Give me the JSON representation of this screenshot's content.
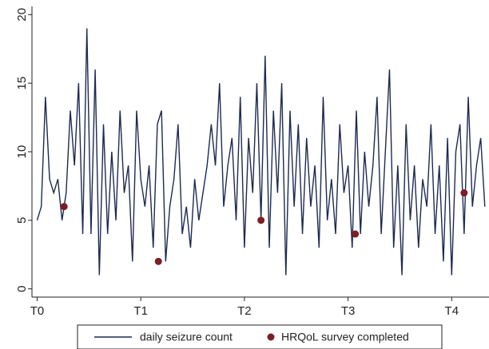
{
  "chart_data": {
    "type": "line",
    "xlim": [
      -0.05,
      4.36
    ],
    "ylim": [
      -0.6,
      20.6
    ],
    "xticks": [
      {
        "value": 0,
        "label": "T0"
      },
      {
        "value": 1,
        "label": "T1"
      },
      {
        "value": 2,
        "label": "T2"
      },
      {
        "value": 3,
        "label": "T3"
      },
      {
        "value": 4,
        "label": "T4"
      }
    ],
    "yticks": [
      0,
      5,
      10,
      15,
      20
    ],
    "series": [
      {
        "name": "daily seizure count",
        "color": "#1c2a52",
        "x": [
          0,
          0.04,
          0.08,
          0.12,
          0.16,
          0.2,
          0.24,
          0.28,
          0.32,
          0.36,
          0.4,
          0.44,
          0.48,
          0.52,
          0.56,
          0.6,
          0.64,
          0.68,
          0.72,
          0.76,
          0.8,
          0.84,
          0.88,
          0.92,
          0.96,
          1,
          1.04,
          1.08,
          1.12,
          1.16,
          1.2,
          1.24,
          1.28,
          1.32,
          1.36,
          1.4,
          1.44,
          1.48,
          1.52,
          1.56,
          1.6,
          1.64,
          1.68,
          1.72,
          1.76,
          1.8,
          1.84,
          1.88,
          1.92,
          1.96,
          2,
          2.04,
          2.08,
          2.12,
          2.16,
          2.2,
          2.24,
          2.28,
          2.32,
          2.36,
          2.4,
          2.44,
          2.48,
          2.52,
          2.56,
          2.6,
          2.64,
          2.68,
          2.72,
          2.76,
          2.8,
          2.84,
          2.88,
          2.92,
          2.96,
          3,
          3.04,
          3.08,
          3.12,
          3.16,
          3.2,
          3.24,
          3.28,
          3.32,
          3.36,
          3.4,
          3.44,
          3.48,
          3.52,
          3.56,
          3.6,
          3.64,
          3.68,
          3.72,
          3.76,
          3.8,
          3.84,
          3.88,
          3.92,
          3.96,
          4,
          4.04,
          4.08,
          4.12,
          4.16,
          4.2,
          4.24,
          4.28,
          4.32
        ],
        "values": [
          5,
          6,
          14,
          8,
          7,
          8,
          5,
          7,
          13,
          9,
          15,
          4,
          19,
          4,
          16,
          1,
          12,
          4,
          10,
          5,
          13,
          7,
          9,
          2,
          13,
          8,
          6,
          9,
          3,
          12,
          13,
          2,
          6,
          8,
          12,
          4,
          6,
          3,
          8,
          5,
          7,
          9,
          12,
          9,
          15,
          6,
          9,
          11,
          5,
          14,
          3,
          11,
          7,
          15,
          5,
          17,
          3,
          13,
          7,
          15,
          1,
          13,
          6,
          12,
          4,
          11,
          6,
          9,
          3,
          14,
          5,
          8,
          4,
          12,
          7,
          9,
          3,
          13,
          4,
          10,
          6,
          9,
          14,
          4,
          10,
          16,
          3,
          9,
          1,
          12,
          5,
          9,
          3,
          8,
          6,
          12,
          4,
          9,
          2,
          11,
          1,
          10,
          12,
          4,
          14,
          6,
          9,
          11,
          6
        ]
      },
      {
        "name": "HRQoL survey completed",
        "type": "scatter",
        "color": "#7b1e24",
        "x": [
          0.26,
          1.17,
          2.16,
          3.07,
          4.12
        ],
        "values": [
          6,
          2,
          5,
          4,
          7
        ]
      }
    ]
  }
}
